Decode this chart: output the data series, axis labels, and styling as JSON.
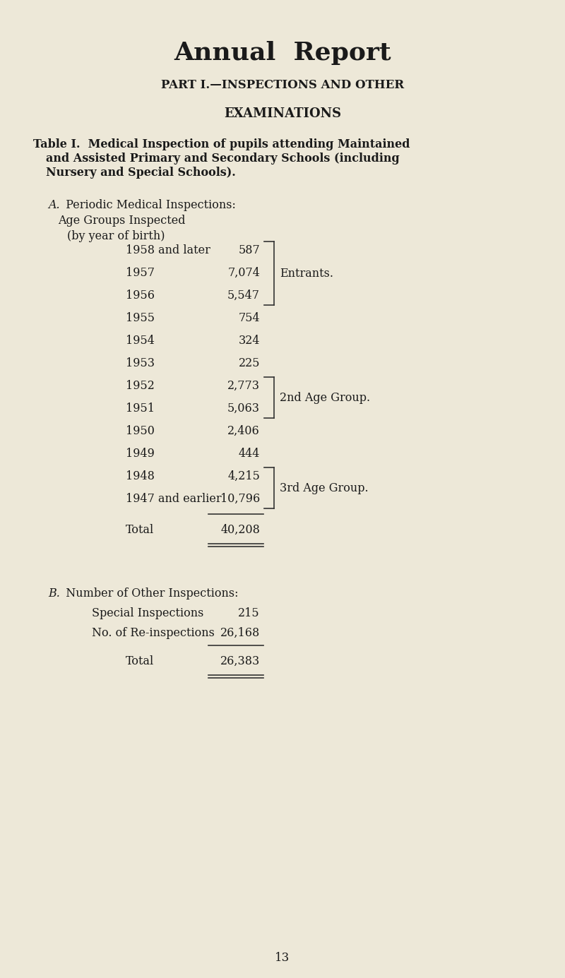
{
  "bg_color": "#ede8d8",
  "title": "Annual  Report",
  "part_heading": "PART I.—INSPECTIONS AND OTHER",
  "examinations": "EXAMINATIONS",
  "table_intro_line1": "Table I.  Medical Inspection of pupils attending Maintained",
  "table_intro_line2": "and Assisted Primary and Secondary Schools (including",
  "table_intro_line3": "Nursery and Special Schools).",
  "section_a_italic": "A.",
  "section_a_text": "  Periodic Medical Inspections:",
  "age_groups_line1": "Age Groups Inspected",
  "age_groups_line2": "(by year of birth)",
  "rows": [
    {
      "year": "1958 and later",
      "value": "587"
    },
    {
      "year": "1957",
      "value": "7,074"
    },
    {
      "year": "1956",
      "value": "5,547"
    },
    {
      "year": "1955",
      "value": "754"
    },
    {
      "year": "1954",
      "value": "324"
    },
    {
      "year": "1953",
      "value": "225"
    },
    {
      "year": "1952",
      "value": "2,773"
    },
    {
      "year": "1951",
      "value": "5,063"
    },
    {
      "year": "1950",
      "value": "2,406"
    },
    {
      "year": "1949",
      "value": "444"
    },
    {
      "year": "1948",
      "value": "4,215"
    },
    {
      "year": "1947 and earlier",
      "value": "10,796"
    }
  ],
  "total_label": "Total",
  "total_value": "40,208",
  "section_b_italic": "B.",
  "section_b_text": "  Number of Other Inspections:",
  "special_label": "Special Inspections",
  "special_value": "215",
  "reinspect_label": "No. of Re-inspections",
  "reinspect_value": "26,168",
  "total_b_value": "26,383",
  "page_number": "13",
  "entrants_label": "Entrants.",
  "group2_label": "2nd Age Group.",
  "group3_label": "3rd Age Group.",
  "bracket_entrants_rows": [
    0,
    1,
    2
  ],
  "bracket_2nd_rows": [
    6,
    7
  ],
  "bracket_3rd_rows": [
    10,
    11
  ],
  "text_color": "#1a1a1a"
}
